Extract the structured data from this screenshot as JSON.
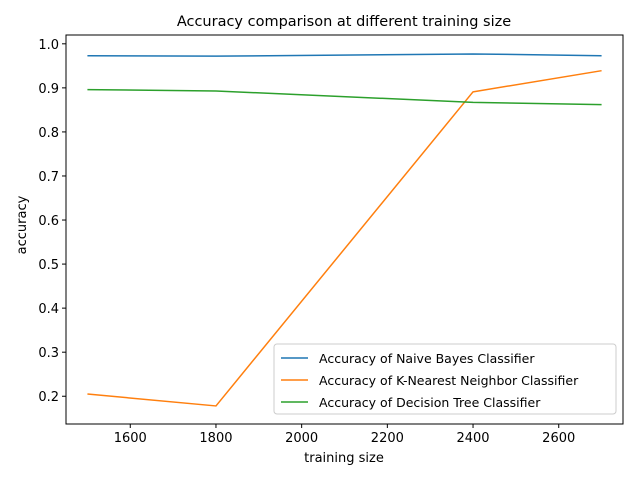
{
  "chart_data": {
    "type": "line",
    "title": "Accuracy comparison at different training size",
    "xlabel": "training size",
    "ylabel": "accuracy",
    "x": [
      1500,
      1800,
      2400,
      2700
    ],
    "xlim": [
      1450,
      2750
    ],
    "ylim": [
      0.137,
      1.02
    ],
    "xticks": [
      1600,
      1800,
      2000,
      2200,
      2400,
      2600
    ],
    "yticks": [
      0.2,
      0.3,
      0.4,
      0.5,
      0.6,
      0.7,
      0.8,
      0.9,
      1.0
    ],
    "grid": false,
    "legend_position": "lower-right",
    "series": [
      {
        "name": "Accuracy of Naive Bayes Classifier",
        "color": "#1f77b4",
        "values": [
          0.973,
          0.972,
          0.977,
          0.973
        ]
      },
      {
        "name": "Accuracy of K-Nearest Neighbor Classifier",
        "color": "#ff7f0e",
        "values": [
          0.205,
          0.178,
          0.891,
          0.939
        ]
      },
      {
        "name": "Accuracy of Decision Tree Classifier",
        "color": "#2ca02c",
        "values": [
          0.896,
          0.893,
          0.867,
          0.862
        ]
      }
    ]
  }
}
